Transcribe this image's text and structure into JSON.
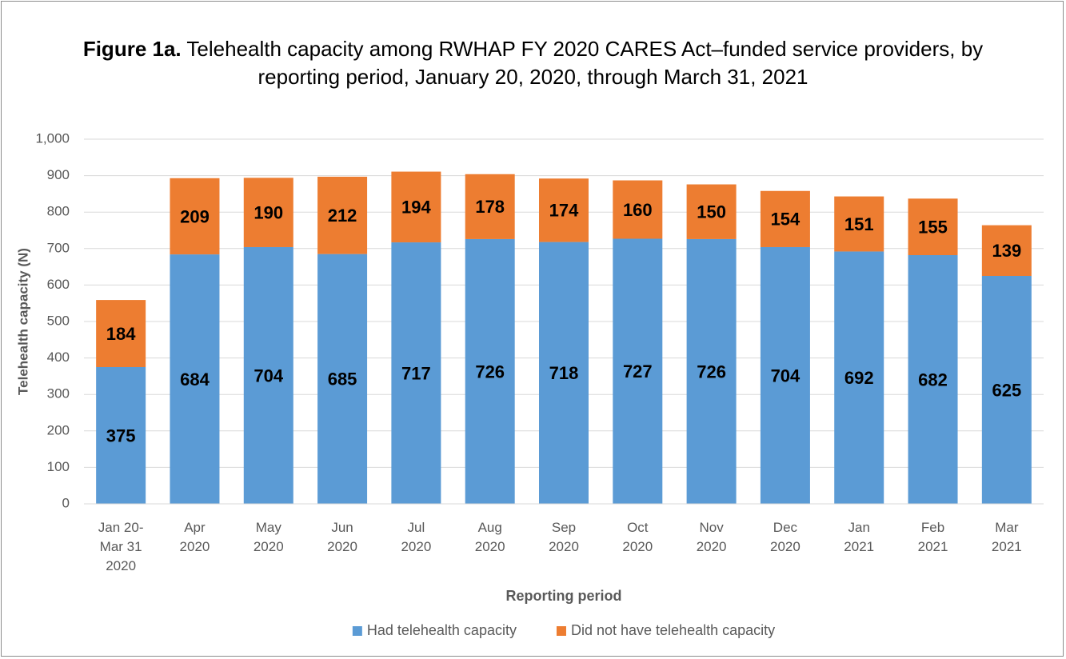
{
  "chart_data": {
    "type": "stacked_bar",
    "figure_label": "Figure 1a.",
    "title": "Telehealth capacity among RWHAP FY 2020 CARES Act–funded service providers, by reporting period, January 20, 2020, through March 31, 2021",
    "x_label": "Reporting period",
    "y_label": "Telehealth capacity (N)",
    "categories": [
      "Jan 20-\nMar 31\n2020",
      "Apr\n2020",
      "May\n2020",
      "Jun\n2020",
      "Jul\n2020",
      "Aug\n2020",
      "Sep\n2020",
      "Oct\n2020",
      "Nov\n2020",
      "Dec\n2020",
      "Jan\n2021",
      "Feb\n2021",
      "Mar\n2021"
    ],
    "series": [
      {
        "name": "Had telehealth capacity",
        "color": "#5b9bd5",
        "values": [
          375,
          684,
          704,
          685,
          717,
          726,
          718,
          727,
          726,
          704,
          692,
          682,
          625
        ]
      },
      {
        "name": "Did not have telehealth capacity",
        "color": "#ed7d31",
        "values": [
          184,
          209,
          190,
          212,
          194,
          178,
          174,
          160,
          150,
          154,
          151,
          155,
          139
        ]
      }
    ],
    "ylim": [
      0,
      1000
    ],
    "yticks": [
      0,
      100,
      200,
      300,
      400,
      500,
      600,
      700,
      800,
      900,
      {
        "value": 1000,
        "label": "1,000"
      }
    ],
    "grid": true,
    "legend": "bottom"
  }
}
